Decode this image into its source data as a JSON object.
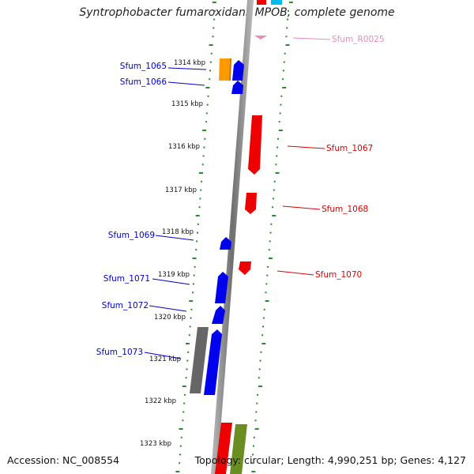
{
  "title": "Syntrophobacter fumaroxidans MPOB, complete genome",
  "footer": {
    "accession": "Accession: NC_008554",
    "topology": "Topology: circular; Length: 4,990,251 bp; Genes: 4,127"
  },
  "colors": {
    "backbone": "#888888",
    "tick_dots": "#2b8a2b",
    "forward_blue": "#0000ee",
    "reverse_red": "#ee0000",
    "orange": "#ff9900",
    "gray": "#666666",
    "olive": "#6b8e23",
    "cyan": "#00bbee",
    "pink": "#ee88bb"
  },
  "scale_labels": [
    "1314 kbp",
    "1315 kbp",
    "1316 kbp",
    "1317 kbp",
    "1318 kbp",
    "1319 kbp",
    "1320 kbp",
    "1321 kbp",
    "1322 kbp",
    "1323 kbp"
  ],
  "genes": [
    {
      "name": "Sfum_1065",
      "color": "orange"
    },
    {
      "name": "Sfum_1066",
      "color": "forward_blue"
    },
    {
      "name": "Sfum_1067",
      "color": "reverse_red"
    },
    {
      "name": "Sfum_1068",
      "color": "reverse_red"
    },
    {
      "name": "Sfum_1069",
      "color": "forward_blue"
    },
    {
      "name": "Sfum_1070",
      "color": "reverse_red"
    },
    {
      "name": "Sfum_1071",
      "color": "forward_blue"
    },
    {
      "name": "Sfum_1072",
      "color": "forward_blue"
    },
    {
      "name": "Sfum_1073",
      "color": "forward_blue"
    },
    {
      "name": "Sfum_R0025",
      "color": "pink"
    }
  ]
}
